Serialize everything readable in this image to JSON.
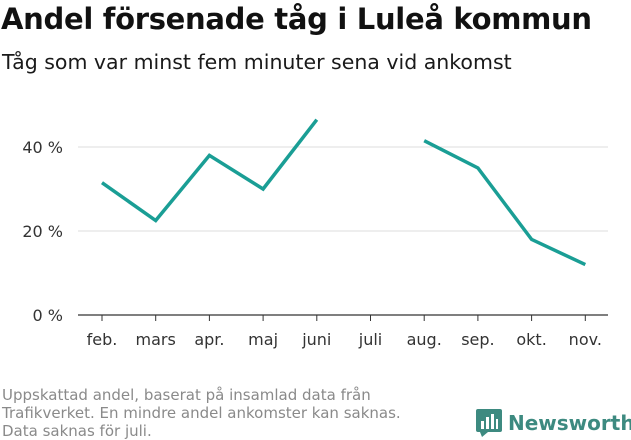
{
  "title": "Andel försenade tåg i Luleå kommun",
  "subtitle": "Tåg som var minst fem minuter sena vid ankomst",
  "footnote": [
    "Uppskattad andel, baserat på insamlad data från",
    "Trafikverket. En mindre andel ankomster kan saknas.",
    "Data saknas för juli."
  ],
  "brand": {
    "name": "Newsworthy",
    "color": "#3d8a80",
    "icon": "bar-chart-icon"
  },
  "chart_data": {
    "type": "line",
    "categories": [
      "feb.",
      "mars",
      "apr.",
      "maj",
      "juni",
      "juli",
      "aug.",
      "sep.",
      "okt.",
      "nov."
    ],
    "series": [
      {
        "values": [
          31.5,
          22.5,
          38,
          30,
          46.5,
          null,
          41.5,
          35,
          18,
          12
        ],
        "color": "#1a9e95"
      }
    ],
    "ylim": [
      0,
      45
    ],
    "yticks": [
      0,
      20,
      40
    ],
    "ytick_labels": [
      "0 %",
      "20 %",
      "40 %"
    ],
    "grid": true
  }
}
